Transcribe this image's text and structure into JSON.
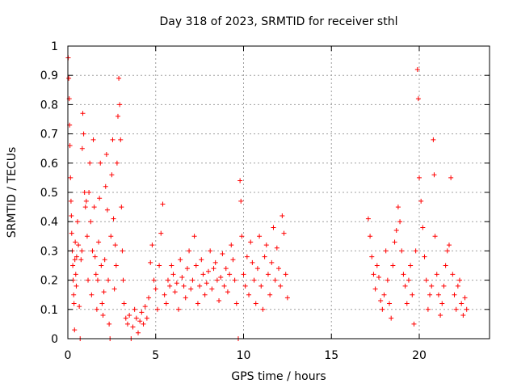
{
  "chart_data": {
    "type": "scatter",
    "title": "Day 318 of 2023, SRMTID for receiver sthl",
    "xlabel": "GPS time / hours",
    "ylabel": "SRMTID / TECUs",
    "xlim": [
      0,
      24
    ],
    "ylim": [
      0,
      1
    ],
    "xticks": [
      0,
      5,
      10,
      15,
      20
    ],
    "xtick_labels": [
      "0",
      "5",
      "10",
      "15",
      "20"
    ],
    "yticks": [
      0,
      0.1,
      0.2,
      0.3,
      0.4,
      0.5,
      0.6,
      0.7,
      0.8,
      0.9,
      1
    ],
    "ytick_labels": [
      "0",
      "0.1",
      "0.2",
      "0.3",
      "0.4",
      "0.5",
      "0.6",
      "0.7",
      "0.8",
      "0.9",
      "1"
    ],
    "grid": true,
    "marker": "+",
    "series": [
      {
        "name": "SRMTID",
        "color": "#ff0000",
        "points": [
          [
            0.02,
            0.96
          ],
          [
            0.05,
            0.89
          ],
          [
            0.08,
            0.82
          ],
          [
            0.1,
            0.73
          ],
          [
            0.12,
            0.66
          ],
          [
            0.15,
            0.55
          ],
          [
            0.18,
            0.47
          ],
          [
            0.2,
            0.42
          ],
          [
            0.22,
            0.36
          ],
          [
            0.25,
            0.3
          ],
          [
            0.28,
            0.25
          ],
          [
            0.3,
            0.2
          ],
          [
            0.33,
            0.15
          ],
          [
            0.35,
            0.12
          ],
          [
            0.38,
            0.03
          ],
          [
            0.4,
            0.27
          ],
          [
            0.42,
            0.33
          ],
          [
            0.45,
            0.22
          ],
          [
            0.48,
            0.18
          ],
          [
            0.5,
            0.28
          ],
          [
            0.55,
            0.4
          ],
          [
            0.6,
            0.32
          ],
          [
            0.65,
            0.11
          ],
          [
            0.7,
            0.0
          ],
          [
            0.75,
            0.27
          ],
          [
            0.8,
            0.3
          ],
          [
            0.82,
            0.65
          ],
          [
            0.85,
            0.77
          ],
          [
            0.9,
            0.7
          ],
          [
            0.95,
            0.5
          ],
          [
            1.0,
            0.45
          ],
          [
            1.05,
            0.47
          ],
          [
            1.1,
            0.35
          ],
          [
            1.15,
            0.2
          ],
          [
            1.2,
            0.5
          ],
          [
            1.25,
            0.6
          ],
          [
            1.3,
            0.4
          ],
          [
            1.35,
            0.15
          ],
          [
            1.4,
            0.3
          ],
          [
            1.45,
            0.68
          ],
          [
            1.5,
            0.45
          ],
          [
            1.55,
            0.28
          ],
          [
            1.6,
            0.22
          ],
          [
            1.65,
            0.1
          ],
          [
            1.7,
            0.2
          ],
          [
            1.75,
            0.33
          ],
          [
            1.8,
            0.48
          ],
          [
            1.85,
            0.6
          ],
          [
            1.9,
            0.25
          ],
          [
            1.95,
            0.12
          ],
          [
            2.0,
            0.08
          ],
          [
            2.05,
            0.16
          ],
          [
            2.1,
            0.27
          ],
          [
            2.15,
            0.52
          ],
          [
            2.2,
            0.63
          ],
          [
            2.25,
            0.44
          ],
          [
            2.3,
            0.2
          ],
          [
            2.35,
            0.05
          ],
          [
            2.4,
            0.0
          ],
          [
            2.45,
            0.35
          ],
          [
            2.5,
            0.56
          ],
          [
            2.55,
            0.68
          ],
          [
            2.6,
            0.41
          ],
          [
            2.65,
            0.17
          ],
          [
            2.7,
            0.32
          ],
          [
            2.75,
            0.25
          ],
          [
            2.8,
            0.6
          ],
          [
            2.85,
            0.76
          ],
          [
            2.9,
            0.89
          ],
          [
            2.95,
            0.8
          ],
          [
            3.0,
            0.68
          ],
          [
            3.05,
            0.45
          ],
          [
            3.1,
            0.3
          ],
          [
            3.15,
            0.2
          ],
          [
            3.2,
            0.12
          ],
          [
            3.3,
            0.07
          ],
          [
            3.4,
            0.05
          ],
          [
            3.5,
            0.08
          ],
          [
            3.6,
            0.0
          ],
          [
            3.7,
            0.04
          ],
          [
            3.8,
            0.1
          ],
          [
            3.9,
            0.07
          ],
          [
            4.0,
            0.02
          ],
          [
            4.1,
            0.06
          ],
          [
            4.2,
            0.09
          ],
          [
            4.3,
            0.05
          ],
          [
            4.4,
            0.11
          ],
          [
            4.5,
            0.07
          ],
          [
            4.6,
            0.14
          ],
          [
            4.7,
            0.26
          ],
          [
            4.8,
            0.32
          ],
          [
            4.9,
            0.2
          ],
          [
            5.0,
            0.17
          ],
          [
            5.1,
            0.1
          ],
          [
            5.2,
            0.25
          ],
          [
            5.3,
            0.36
          ],
          [
            5.4,
            0.46
          ],
          [
            5.5,
            0.15
          ],
          [
            5.6,
            0.12
          ],
          [
            5.7,
            0.2
          ],
          [
            5.8,
            0.18
          ],
          [
            5.9,
            0.25
          ],
          [
            6.0,
            0.22
          ],
          [
            6.1,
            0.16
          ],
          [
            6.2,
            0.19
          ],
          [
            6.3,
            0.1
          ],
          [
            6.4,
            0.27
          ],
          [
            6.5,
            0.21
          ],
          [
            6.6,
            0.18
          ],
          [
            6.7,
            0.14
          ],
          [
            6.8,
            0.24
          ],
          [
            6.9,
            0.3
          ],
          [
            7.0,
            0.17
          ],
          [
            7.1,
            0.2
          ],
          [
            7.2,
            0.35
          ],
          [
            7.3,
            0.25
          ],
          [
            7.4,
            0.12
          ],
          [
            7.5,
            0.18
          ],
          [
            7.6,
            0.27
          ],
          [
            7.7,
            0.22
          ],
          [
            7.8,
            0.15
          ],
          [
            7.9,
            0.19
          ],
          [
            8.0,
            0.23
          ],
          [
            8.1,
            0.3
          ],
          [
            8.2,
            0.17
          ],
          [
            8.3,
            0.24
          ],
          [
            8.4,
            0.26
          ],
          [
            8.5,
            0.2
          ],
          [
            8.6,
            0.13
          ],
          [
            8.7,
            0.21
          ],
          [
            8.8,
            0.29
          ],
          [
            8.9,
            0.18
          ],
          [
            9.0,
            0.24
          ],
          [
            9.1,
            0.16
          ],
          [
            9.2,
            0.22
          ],
          [
            9.3,
            0.32
          ],
          [
            9.4,
            0.27
          ],
          [
            9.5,
            0.2
          ],
          [
            9.6,
            0.12
          ],
          [
            9.7,
            0.0
          ],
          [
            9.8,
            0.54
          ],
          [
            9.85,
            0.47
          ],
          [
            9.9,
            0.35
          ],
          [
            10.0,
            0.22
          ],
          [
            10.1,
            0.18
          ],
          [
            10.2,
            0.28
          ],
          [
            10.3,
            0.15
          ],
          [
            10.4,
            0.33
          ],
          [
            10.5,
            0.26
          ],
          [
            10.6,
            0.2
          ],
          [
            10.7,
            0.12
          ],
          [
            10.8,
            0.24
          ],
          [
            10.9,
            0.35
          ],
          [
            11.0,
            0.18
          ],
          [
            11.1,
            0.1
          ],
          [
            11.2,
            0.28
          ],
          [
            11.3,
            0.32
          ],
          [
            11.4,
            0.22
          ],
          [
            11.5,
            0.15
          ],
          [
            11.6,
            0.26
          ],
          [
            11.7,
            0.38
          ],
          [
            11.8,
            0.2
          ],
          [
            11.9,
            0.31
          ],
          [
            12.0,
            0.24
          ],
          [
            12.1,
            0.18
          ],
          [
            12.2,
            0.42
          ],
          [
            12.3,
            0.36
          ],
          [
            12.4,
            0.22
          ],
          [
            12.5,
            0.14
          ],
          [
            17.1,
            0.41
          ],
          [
            17.2,
            0.35
          ],
          [
            17.3,
            0.28
          ],
          [
            17.4,
            0.22
          ],
          [
            17.5,
            0.17
          ],
          [
            17.6,
            0.25
          ],
          [
            17.7,
            0.21
          ],
          [
            17.8,
            0.13
          ],
          [
            17.9,
            0.1
          ],
          [
            18.0,
            0.15
          ],
          [
            18.1,
            0.3
          ],
          [
            18.2,
            0.2
          ],
          [
            18.3,
            0.12
          ],
          [
            18.4,
            0.07
          ],
          [
            18.5,
            0.25
          ],
          [
            18.6,
            0.33
          ],
          [
            18.7,
            0.37
          ],
          [
            18.8,
            0.45
          ],
          [
            18.9,
            0.4
          ],
          [
            19.0,
            0.3
          ],
          [
            19.1,
            0.22
          ],
          [
            19.2,
            0.18
          ],
          [
            19.3,
            0.12
          ],
          [
            19.4,
            0.2
          ],
          [
            19.5,
            0.25
          ],
          [
            19.6,
            0.15
          ],
          [
            19.7,
            0.05
          ],
          [
            19.8,
            0.3
          ],
          [
            19.9,
            0.92
          ],
          [
            19.95,
            0.82
          ],
          [
            20.0,
            0.55
          ],
          [
            20.1,
            0.47
          ],
          [
            20.2,
            0.38
          ],
          [
            20.3,
            0.28
          ],
          [
            20.4,
            0.2
          ],
          [
            20.5,
            0.1
          ],
          [
            20.6,
            0.15
          ],
          [
            20.7,
            0.18
          ],
          [
            20.8,
            0.68
          ],
          [
            20.85,
            0.56
          ],
          [
            20.9,
            0.35
          ],
          [
            21.0,
            0.22
          ],
          [
            21.1,
            0.15
          ],
          [
            21.2,
            0.08
          ],
          [
            21.3,
            0.12
          ],
          [
            21.4,
            0.18
          ],
          [
            21.5,
            0.25
          ],
          [
            21.6,
            0.3
          ],
          [
            21.7,
            0.32
          ],
          [
            21.8,
            0.55
          ],
          [
            21.9,
            0.22
          ],
          [
            22.0,
            0.15
          ],
          [
            22.1,
            0.1
          ],
          [
            22.2,
            0.18
          ],
          [
            22.3,
            0.2
          ],
          [
            22.4,
            0.12
          ],
          [
            22.5,
            0.08
          ],
          [
            22.6,
            0.14
          ],
          [
            22.7,
            0.1
          ]
        ]
      }
    ]
  }
}
